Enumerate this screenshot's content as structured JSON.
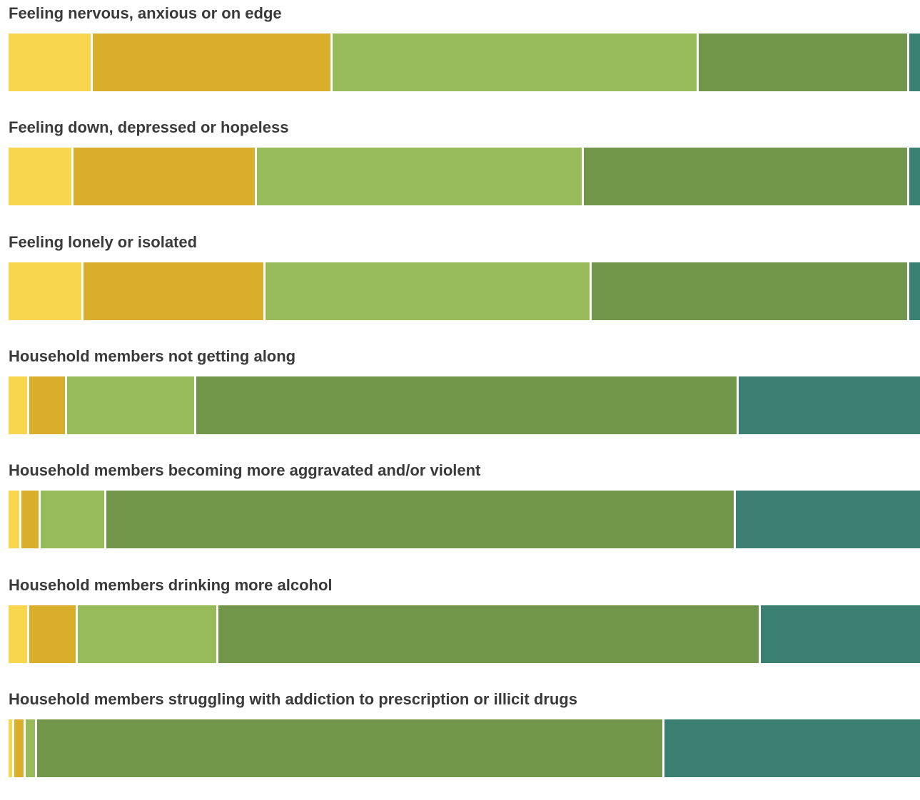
{
  "chart_data": {
    "type": "bar",
    "orientation": "horizontal",
    "stacked": true,
    "normalized_percent": true,
    "title": "",
    "xlabel": "",
    "ylabel": "",
    "legend": "none",
    "grid": false,
    "categories": [
      "Feeling nervous, anxious or on edge",
      "Feeling down, depressed or hopeless",
      "Feeling lonely or isolated",
      "Household members not getting along",
      "Household members becoming more aggravated and/or violent",
      "Household members drinking more alcohol",
      "Household members struggling with addiction to prescription or illicit drugs"
    ],
    "colors": [
      "#f8d74f",
      "#d8ae2b",
      "#98bb59",
      "#71964a",
      "#3a7f71"
    ],
    "series": [
      {
        "values": [
          9.2,
          7.1,
          8.2,
          2.3,
          1.4,
          2.3,
          0.6
        ]
      },
      {
        "values": [
          26.2,
          20.1,
          19.9,
          4.1,
          2.1,
          5.3,
          1.3
        ]
      },
      {
        "values": [
          40.0,
          35.8,
          35.6,
          14.1,
          7.2,
          15.4,
          1.2
        ]
      },
      {
        "values": [
          23.0,
          35.6,
          34.7,
          59.4,
          68.8,
          59.4,
          68.7
        ]
      },
      {
        "values": [
          1.2,
          1.2,
          1.2,
          19.8,
          20.1,
          17.4,
          28.0
        ]
      }
    ]
  }
}
